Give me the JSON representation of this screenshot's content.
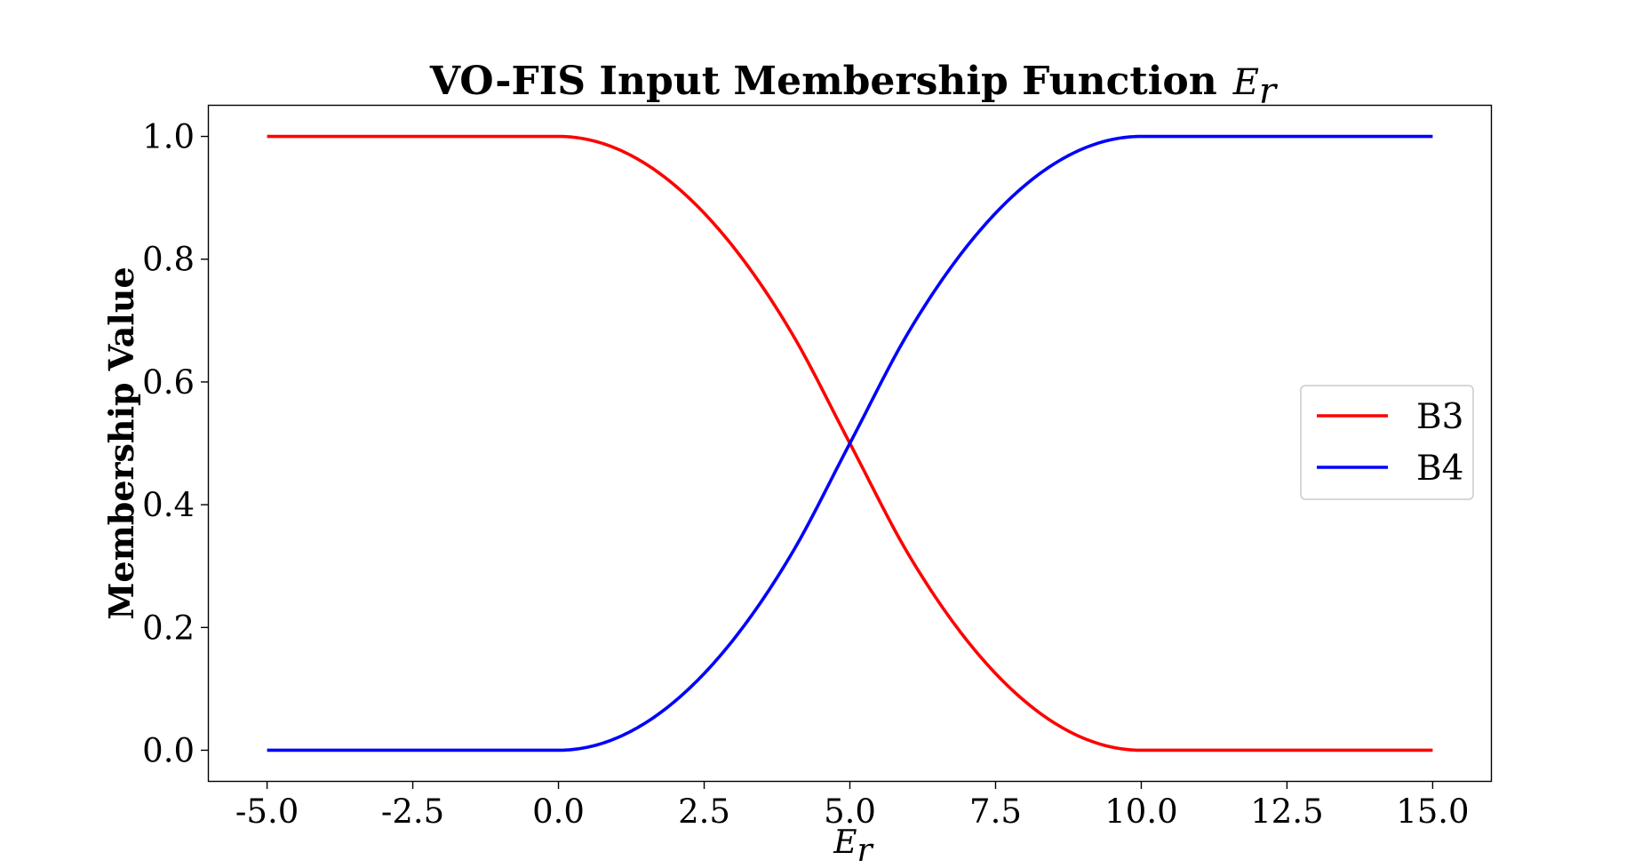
{
  "chart_data": {
    "type": "line",
    "title": "VO-FIS Input Membership Function",
    "title_math": {
      "base": "E",
      "sub": "r"
    },
    "xlabel": {
      "base": "E",
      "sub": "r"
    },
    "ylabel": "Membership Value",
    "xlim": [
      -6.0,
      16.0
    ],
    "ylim": [
      -0.05,
      1.05
    ],
    "x_ticks": [
      -5.0,
      -2.5,
      0.0,
      2.5,
      5.0,
      7.5,
      10.0,
      12.5,
      15.0
    ],
    "x_tick_labels": [
      "-5.0",
      "-2.5",
      "0.0",
      "2.5",
      "5.0",
      "7.5",
      "10.0",
      "12.5",
      "15.0"
    ],
    "y_ticks": [
      0.0,
      0.2,
      0.4,
      0.6,
      0.8,
      1.0
    ],
    "y_tick_labels": [
      "0.0",
      "0.2",
      "0.4",
      "0.6",
      "0.8",
      "1.0"
    ],
    "grid": false,
    "legend_position": "center-right",
    "series": [
      {
        "name": "B3",
        "color": "#ff0000",
        "x": [
          -5.0,
          0.0,
          1.0,
          2.0,
          3.0,
          4.0,
          5.0,
          6.0,
          7.0,
          8.0,
          9.0,
          10.0,
          15.0
        ],
        "y": [
          1.0,
          1.0,
          0.98,
          0.92,
          0.82,
          0.68,
          0.5,
          0.32,
          0.18,
          0.08,
          0.02,
          0.0,
          0.0
        ]
      },
      {
        "name": "B4",
        "color": "#0000ff",
        "x": [
          -5.0,
          0.0,
          1.0,
          2.0,
          3.0,
          4.0,
          5.0,
          6.0,
          7.0,
          8.0,
          9.0,
          10.0,
          15.0
        ],
        "y": [
          0.0,
          0.0,
          0.02,
          0.08,
          0.18,
          0.32,
          0.5,
          0.68,
          0.82,
          0.92,
          0.98,
          1.0,
          1.0
        ]
      }
    ]
  }
}
